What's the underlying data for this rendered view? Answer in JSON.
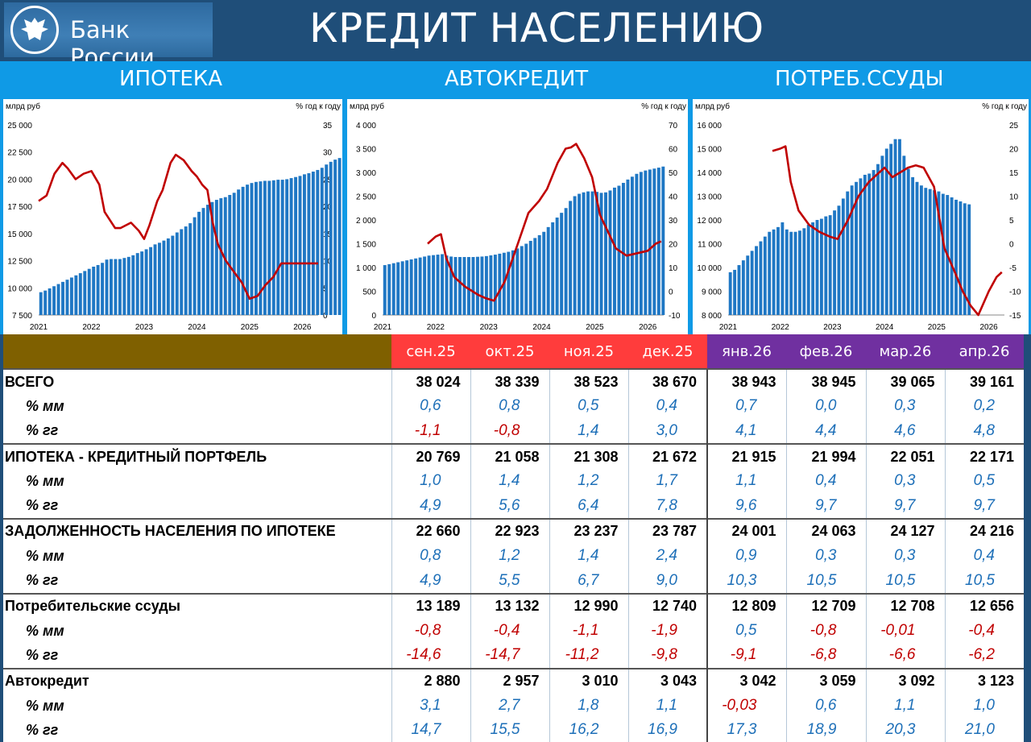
{
  "header": {
    "logo_text": "Банк России",
    "title": "КРЕДИТ НАСЕЛЕНИЮ"
  },
  "sections": [
    "ИПОТЕКА",
    "АВТОКРЕДИТ",
    "ПОТРЕБ.ССУДЫ"
  ],
  "colors": {
    "bar": "#1f77c4",
    "line": "#c00000",
    "header": "#1f4e79",
    "band": "#0f9ae6"
  },
  "chart_data": [
    {
      "type": "bar",
      "left_unit": "млрд руб",
      "right_unit": "% год к году",
      "x_labels": [
        "2021",
        "2022",
        "2023",
        "2024",
        "2025",
        "2026"
      ],
      "ylim": [
        7500,
        25000
      ],
      "yticks": [
        7500,
        10000,
        12500,
        15000,
        17500,
        20000,
        22500,
        25000
      ],
      "y2lim": [
        0,
        35
      ],
      "y2ticks": [
        0,
        5,
        10,
        15,
        20,
        25,
        30,
        35
      ],
      "x_start": 2021.0,
      "x_end": 2026.3,
      "bars": {
        "start": 2021.0,
        "step": 0.0833,
        "values": [
          9600,
          9750,
          9950,
          10150,
          10350,
          10550,
          10750,
          10950,
          11150,
          11350,
          11550,
          11750,
          11950,
          12100,
          12300,
          12600,
          12650,
          12650,
          12650,
          12750,
          12850,
          13000,
          13200,
          13350,
          13550,
          13750,
          14000,
          14150,
          14350,
          14550,
          14800,
          15100,
          15400,
          15650,
          15950,
          16500,
          17000,
          17350,
          17650,
          17900,
          18100,
          18250,
          18350,
          18550,
          18750,
          19050,
          19300,
          19500,
          19650,
          19750,
          19800,
          19850,
          19850,
          19900,
          19950,
          19950,
          20000,
          20100,
          20200,
          20300,
          20450,
          20550,
          20700,
          20850,
          21050,
          21350,
          21600,
          21800,
          21950,
          22000,
          22050,
          22170
        ]
      },
      "line": {
        "x": [
          2021.0,
          2021.15,
          2021.3,
          2021.45,
          2021.55,
          2021.7,
          2021.85,
          2022.0,
          2022.15,
          2022.25,
          2022.45,
          2022.55,
          2022.75,
          2022.9,
          2023.0,
          2023.1,
          2023.25,
          2023.35,
          2023.5,
          2023.6,
          2023.75,
          2023.9,
          2024.0,
          2024.1,
          2024.2,
          2024.3,
          2024.4,
          2024.55,
          2024.7,
          2024.85,
          2025.0,
          2025.15,
          2025.3,
          2025.45,
          2025.6,
          2025.75,
          2025.9,
          2026.0,
          2026.15,
          2026.3
        ],
        "y": [
          21,
          22,
          26,
          28,
          27,
          25,
          26,
          26.5,
          24,
          19,
          16,
          16,
          17,
          15.5,
          14,
          16.5,
          21,
          23,
          28,
          29.5,
          28.5,
          26.5,
          25.5,
          24,
          23,
          17,
          13,
          10,
          8,
          6,
          3,
          3.5,
          5.5,
          7,
          9.5,
          9.5,
          9.5,
          9.5,
          9.5,
          9.5
        ]
      }
    },
    {
      "type": "bar",
      "left_unit": "млрд руб",
      "right_unit": "% год к году",
      "x_labels": [
        "2021",
        "2022",
        "2023",
        "2024",
        "2025",
        "2026"
      ],
      "ylim": [
        0,
        4000
      ],
      "yticks": [
        0,
        500,
        1000,
        1500,
        2000,
        2500,
        3000,
        3500,
        4000
      ],
      "y2lim": [
        -10,
        70
      ],
      "y2ticks": [
        -10,
        0,
        10,
        20,
        30,
        40,
        50,
        60,
        70
      ],
      "x_start": 2021.0,
      "x_end": 2026.3,
      "bars": {
        "start": 2021.0,
        "step": 0.0833,
        "values": [
          1050,
          1070,
          1090,
          1110,
          1130,
          1150,
          1170,
          1190,
          1210,
          1230,
          1250,
          1260,
          1270,
          1280,
          1250,
          1230,
          1220,
          1220,
          1220,
          1220,
          1220,
          1225,
          1230,
          1240,
          1255,
          1270,
          1290,
          1310,
          1330,
          1360,
          1400,
          1450,
          1500,
          1560,
          1620,
          1680,
          1750,
          1850,
          1950,
          2050,
          2150,
          2250,
          2400,
          2500,
          2550,
          2580,
          2600,
          2600,
          2590,
          2570,
          2580,
          2620,
          2680,
          2720,
          2780,
          2850,
          2910,
          2970,
          3010,
          3040,
          3060,
          3080,
          3100,
          3123
        ]
      },
      "line": {
        "x": [
          2021.85,
          2022.0,
          2022.1,
          2022.2,
          2022.35,
          2022.55,
          2022.8,
          2022.95,
          2023.1,
          2023.3,
          2023.55,
          2023.75,
          2023.95,
          2024.1,
          2024.3,
          2024.45,
          2024.55,
          2024.65,
          2024.8,
          2024.95,
          2025.1,
          2025.25,
          2025.4,
          2025.6,
          2025.8,
          2026.0,
          2026.15,
          2026.25
        ],
        "y": [
          20,
          23,
          24,
          14,
          6,
          2,
          -1.5,
          -3,
          -4,
          4,
          20,
          33,
          38,
          43,
          54,
          60,
          60.5,
          62,
          56,
          48,
          32,
          25,
          18,
          15,
          16,
          17,
          20,
          21
        ]
      }
    },
    {
      "type": "bar",
      "left_unit": "млрд руб",
      "right_unit": "% год к году",
      "x_labels": [
        "2021",
        "2022",
        "2023",
        "2024",
        "2025",
        "2026"
      ],
      "ylim": [
        8000,
        16000
      ],
      "yticks": [
        8000,
        9000,
        10000,
        11000,
        12000,
        13000,
        14000,
        15000,
        16000
      ],
      "y2lim": [
        -15,
        25
      ],
      "y2ticks": [
        -15,
        -10,
        -5,
        0,
        5,
        10,
        15,
        20,
        25
      ],
      "x_start": 2021.0,
      "x_end": 2026.3,
      "bars": {
        "start": 2021.0,
        "step": 0.0833,
        "values": [
          9800,
          9900,
          10100,
          10300,
          10500,
          10700,
          10900,
          11100,
          11300,
          11500,
          11600,
          11700,
          11900,
          11600,
          11500,
          11500,
          11550,
          11650,
          11800,
          11900,
          12000,
          12050,
          12150,
          12200,
          12400,
          12600,
          12900,
          13200,
          13450,
          13600,
          13750,
          13900,
          13950,
          14100,
          14350,
          14700,
          15000,
          15200,
          15400,
          15400,
          14700,
          14150,
          13800,
          13600,
          13450,
          13350,
          13300,
          13250,
          13200,
          13100,
          13050,
          12950,
          12850,
          12780,
          12700,
          12656
        ]
      },
      "line": {
        "x": [
          2021.85,
          2022.0,
          2022.1,
          2022.2,
          2022.35,
          2022.55,
          2022.75,
          2022.95,
          2023.1,
          2023.3,
          2023.5,
          2023.7,
          2023.85,
          2024.0,
          2024.15,
          2024.3,
          2024.45,
          2024.6,
          2024.75,
          2024.95,
          2025.15,
          2025.35,
          2025.5,
          2025.65,
          2025.8,
          2026.0,
          2026.15,
          2026.25
        ],
        "y": [
          19.5,
          20,
          20.5,
          13,
          7,
          4,
          2.5,
          1.5,
          1,
          5,
          10,
          13,
          14.5,
          16,
          14,
          15,
          16,
          16.5,
          16,
          12,
          -1,
          -6,
          -10,
          -13,
          -15,
          -10,
          -7,
          -6
        ]
      }
    }
  ],
  "table": {
    "months": [
      "сен.25",
      "окт.25",
      "ноя.25",
      "дек.25",
      "янв.26",
      "фев.26",
      "мар.26",
      "апр.26"
    ],
    "rows": [
      {
        "label": "ВСЕГО",
        "kind": "main",
        "values": [
          "38 024",
          "38 339",
          "38 523",
          "38 670",
          "38 943",
          "38 945",
          "39 065",
          "39 161"
        ]
      },
      {
        "label": "% мм",
        "kind": "sub",
        "values": [
          "0,6",
          "0,8",
          "0,5",
          "0,4",
          "0,7",
          "0,0",
          "0,3",
          "0,2"
        ]
      },
      {
        "label": "% гг",
        "kind": "sub",
        "values": [
          "-1,1",
          "-0,8",
          "1,4",
          "3,0",
          "4,1",
          "4,4",
          "4,6",
          "4,8"
        ]
      },
      {
        "label": "ИПОТЕКА - КРЕДИТНЫЙ ПОРТФЕЛЬ",
        "kind": "main",
        "values": [
          "20 769",
          "21 058",
          "21 308",
          "21 672",
          "21 915",
          "21 994",
          "22 051",
          "22 171"
        ]
      },
      {
        "label": "% мм",
        "kind": "sub",
        "values": [
          "1,0",
          "1,4",
          "1,2",
          "1,7",
          "1,1",
          "0,4",
          "0,3",
          "0,5"
        ]
      },
      {
        "label": "% гг",
        "kind": "sub",
        "values": [
          "4,9",
          "5,6",
          "6,4",
          "7,8",
          "9,6",
          "9,7",
          "9,7",
          "9,7"
        ]
      },
      {
        "label": "ЗАДОЛЖЕННОСТЬ НАСЕЛЕНИЯ ПО ИПОТЕКЕ",
        "kind": "main",
        "values": [
          "22 660",
          "22 923",
          "23 237",
          "23 787",
          "24 001",
          "24 063",
          "24 127",
          "24 216"
        ]
      },
      {
        "label": "% мм",
        "kind": "sub",
        "values": [
          "0,8",
          "1,2",
          "1,4",
          "2,4",
          "0,9",
          "0,3",
          "0,3",
          "0,4"
        ]
      },
      {
        "label": "% гг",
        "kind": "sub",
        "values": [
          "4,9",
          "5,5",
          "6,7",
          "9,0",
          "10,3",
          "10,5",
          "10,5",
          "10,5"
        ]
      },
      {
        "label": "Потребительские ссуды",
        "kind": "main",
        "values": [
          "13 189",
          "13 132",
          "12 990",
          "12 740",
          "12 809",
          "12 709",
          "12 708",
          "12 656"
        ]
      },
      {
        "label": "% мм",
        "kind": "sub",
        "values": [
          "-0,8",
          "-0,4",
          "-1,1",
          "-1,9",
          "0,5",
          "-0,8",
          "-0,01",
          "-0,4"
        ]
      },
      {
        "label": "% гг",
        "kind": "sub",
        "values": [
          "-14,6",
          "-14,7",
          "-11,2",
          "-9,8",
          "-9,1",
          "-6,8",
          "-6,6",
          "-6,2"
        ]
      },
      {
        "label": "Автокредит",
        "kind": "main",
        "values": [
          "2 880",
          "2 957",
          "3 010",
          "3 043",
          "3 042",
          "3 059",
          "3 092",
          "3 123"
        ]
      },
      {
        "label": "% мм",
        "kind": "sub",
        "values": [
          "3,1",
          "2,7",
          "1,8",
          "1,1",
          "-0,03",
          "0,6",
          "1,1",
          "1,0"
        ]
      },
      {
        "label": "% гг",
        "kind": "sub",
        "values": [
          "14,7",
          "15,5",
          "16,2",
          "16,9",
          "17,3",
          "18,9",
          "20,3",
          "21,0"
        ]
      }
    ]
  }
}
